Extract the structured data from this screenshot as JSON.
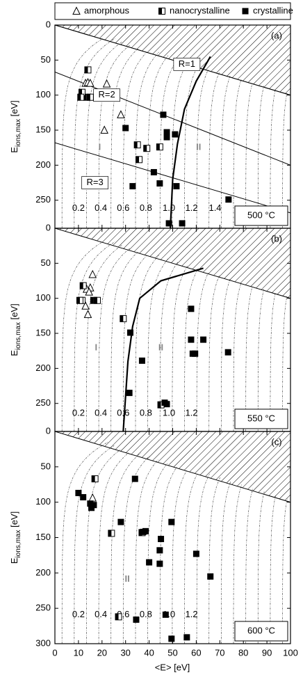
{
  "legend": {
    "series": [
      "amorphous",
      "nanocrystalline",
      "crystalline"
    ]
  },
  "xlabel": "<E> [eV]",
  "ylabel": {
    "main": "E",
    "sub": "ions,max",
    "unit": " [eV]"
  },
  "chart_data": [
    {
      "type": "scatter",
      "panel": "(a)",
      "temperature": "500 °C",
      "xlim": [
        0,
        100
      ],
      "ylim": [
        0,
        290
      ],
      "y_reversed": true,
      "xticks": [
        0,
        10,
        20,
        30,
        40,
        50,
        60,
        70,
        80,
        90,
        100
      ],
      "yticks": [
        0,
        50,
        100,
        150,
        200,
        250
      ],
      "hatch": {
        "x": [
          0,
          100
        ],
        "y": [
          0,
          100
        ]
      },
      "lines": [
        {
          "label": "R=1",
          "x": [
            0,
            100
          ],
          "y": [
            0,
            100
          ]
        },
        {
          "label": "R=2",
          "x": [
            0,
            100
          ],
          "y": [
            67,
            200
          ]
        },
        {
          "label": "R=3",
          "x": [
            0,
            100
          ],
          "y": [
            168,
            268
          ]
        }
      ],
      "boundary": {
        "x": [
          66,
          60,
          55,
          52,
          50,
          49
        ],
        "y": [
          45,
          80,
          120,
          170,
          220,
          290
        ]
      },
      "contour_labels": [
        "0.2",
        "0.4",
        "0.6",
        "0.8",
        "1.0",
        "1.2",
        "1.4"
      ],
      "regions": [
        "I",
        "II"
      ],
      "series": [
        {
          "name": "amorphous",
          "marker": "triangle",
          "color": "#000000",
          "x": [
            13,
            14,
            15,
            22,
            28,
            21
          ],
          "values": [
            83,
            82,
            83,
            84,
            128,
            150
          ]
        },
        {
          "name": "nanocrystalline",
          "marker": "half",
          "color": "#000000",
          "x": [
            14,
            13.5,
            11.5,
            11,
            15,
            35,
            35.7,
            39,
            44.5
          ],
          "values": [
            64,
            103,
            96,
            103,
            103,
            171,
            192,
            176,
            174
          ]
        },
        {
          "name": "crystalline",
          "marker": "square",
          "color": "#000000",
          "x": [
            46,
            47.5,
            47.5,
            51,
            30,
            42,
            44.5,
            51.6,
            33,
            73.7,
            48.4,
            54
          ],
          "values": [
            128,
            153,
            160,
            156,
            147,
            210,
            226,
            230,
            230,
            249,
            283,
            283
          ]
        }
      ]
    },
    {
      "type": "scatter",
      "panel": "(b)",
      "temperature": "550 °C",
      "xlim": [
        0,
        100
      ],
      "ylim": [
        0,
        290
      ],
      "y_reversed": true,
      "xticks": [
        0,
        10,
        20,
        30,
        40,
        50,
        60,
        70,
        80,
        90,
        100
      ],
      "yticks": [
        0,
        50,
        100,
        150,
        200,
        250
      ],
      "hatch": {
        "x": [
          0,
          100
        ],
        "y": [
          0,
          100
        ]
      },
      "boundary": {
        "x": [
          63,
          45,
          36,
          33,
          31,
          30,
          29
        ],
        "y": [
          57,
          75,
          100,
          140,
          190,
          240,
          290
        ]
      },
      "contour_labels": [
        "0.2",
        "0.4",
        "0.6",
        "0.8",
        "1.0",
        "1.2"
      ],
      "regions": [
        "I",
        "II"
      ],
      "series": [
        {
          "name": "amorphous",
          "marker": "triangle",
          "color": "#000000",
          "x": [
            16,
            15,
            13.5,
            14.5,
            13,
            14
          ],
          "values": [
            66,
            85,
            87,
            91,
            111,
            123
          ]
        },
        {
          "name": "nanocrystalline",
          "marker": "half",
          "color": "#000000",
          "x": [
            12,
            11.5,
            10.6,
            16.5,
            18,
            29,
            45
          ],
          "values": [
            82,
            103,
            103,
            103,
            103,
            129,
            252
          ]
        },
        {
          "name": "crystalline",
          "marker": "square",
          "color": "#000000",
          "x": [
            32,
            37,
            31.6,
            46.6,
            57.8,
            57.8,
            63,
            58.5,
            59.5,
            73.5,
            47.5
          ],
          "values": [
            149,
            189,
            235,
            249,
            115,
            159,
            159,
            179,
            179,
            177,
            251
          ]
        }
      ]
    },
    {
      "type": "scatter",
      "panel": "(c)",
      "temperature": "600 °C",
      "xlim": [
        0,
        100
      ],
      "ylim": [
        0,
        300
      ],
      "y_reversed": true,
      "xticks": [
        0,
        10,
        20,
        30,
        40,
        50,
        60,
        70,
        80,
        90,
        100
      ],
      "yticks": [
        0,
        50,
        100,
        150,
        200,
        250,
        300
      ],
      "hatch": {
        "x": [
          0,
          100
        ],
        "y": [
          0,
          100
        ]
      },
      "contour_labels": [
        "0.2",
        "0.4",
        "0.6",
        "0.8",
        "1.0",
        "1.2"
      ],
      "regions": [
        "II"
      ],
      "series": [
        {
          "name": "amorphous",
          "marker": "triangle",
          "color": "#000000",
          "x": [
            16
          ],
          "values": [
            94
          ]
        },
        {
          "name": "nanocrystalline",
          "marker": "half",
          "color": "#000000",
          "x": [
            17,
            24,
            27,
            37
          ],
          "values": [
            67,
            144,
            262,
            143
          ]
        },
        {
          "name": "crystalline",
          "marker": "square",
          "color": "#000000",
          "x": [
            10,
            12,
            15,
            16.5,
            15.5,
            28,
            34,
            37.5,
            38.5,
            45,
            49.5,
            44.5,
            40,
            44.5,
            47,
            49.5,
            56,
            60,
            66,
            34.5
          ],
          "values": [
            87,
            93,
            102,
            104,
            108,
            128,
            67,
            142,
            141,
            152,
            128,
            168,
            185,
            187,
            259,
            293,
            291,
            173,
            205,
            266
          ]
        }
      ]
    }
  ]
}
